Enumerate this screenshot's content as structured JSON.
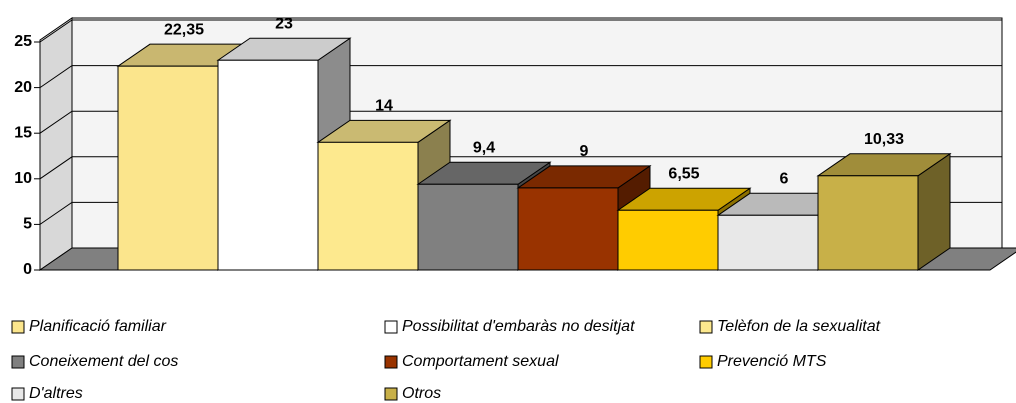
{
  "chart_data": {
    "type": "bar",
    "series": [
      {
        "name": "Planificació familiar",
        "color": "#fbe58c",
        "values": [
          22.35
        ],
        "value_labels": [
          "22,35"
        ]
      },
      {
        "name": "Possibilitat d'embaràs no desitjat",
        "color": "#ffffff",
        "values": [
          23
        ]
      },
      {
        "name": "Telèfon de la sexualitat",
        "color": "#fde98e",
        "values": [
          14
        ]
      },
      {
        "name": "Coneixement del cos",
        "color": "#808080",
        "values": [
          9.4
        ],
        "value_labels": [
          "9,4"
        ]
      },
      {
        "name": "Comportament sexual",
        "color": "#993300",
        "values": [
          9
        ]
      },
      {
        "name": "Prevenció MTS",
        "color": "#ffcc00",
        "values": [
          6.55
        ],
        "value_labels": [
          "6,55"
        ]
      },
      {
        "name": "D'altres",
        "color": "#e8e8e8",
        "values": [
          6
        ]
      },
      {
        "name": "Otros",
        "color": "#c8b048",
        "values": [
          10.33
        ],
        "value_labels": [
          "10,33"
        ]
      }
    ],
    "ylim": [
      0,
      25
    ],
    "yticks": [
      0,
      5,
      10,
      15,
      20,
      25
    ],
    "grid": true,
    "legend": "bottom"
  }
}
